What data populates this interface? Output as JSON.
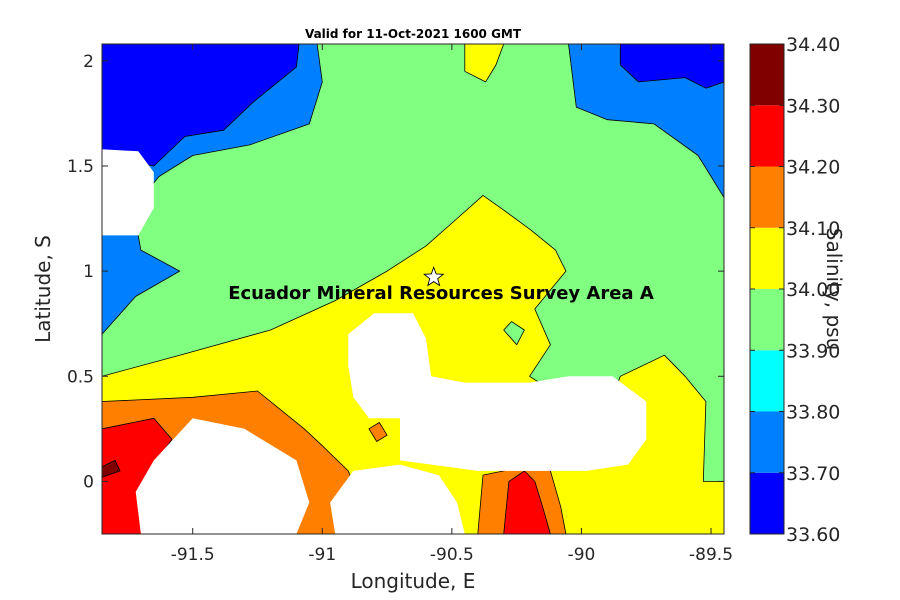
{
  "chart_data": {
    "type": "heatmap",
    "subtype": "filled-contour",
    "title": "Valid for 11-Oct-2021 1600 GMT",
    "xlabel": "Longitude, E",
    "ylabel": "Latitude, S",
    "colorbar_label": "Salinity, psu",
    "annotation": "Ecuador Mineral Resources Survey Area A",
    "marker": {
      "symbol": "star",
      "lon": -90.57,
      "lat": 0.97
    },
    "xlim": [
      -91.85,
      -89.45
    ],
    "ylim": [
      -0.25,
      2.08
    ],
    "xticks": [
      -91.5,
      -91,
      -90.5,
      -90,
      -89.5
    ],
    "xtick_labels": [
      "-91.5",
      "-91",
      "-90.5",
      "-90",
      "-89.5"
    ],
    "yticks": [
      0,
      0.5,
      1,
      1.5,
      2
    ],
    "ytick_labels": [
      "0",
      "0.5",
      "1",
      "1.5",
      "2"
    ],
    "levels": [
      33.6,
      33.7,
      33.8,
      33.9,
      34.0,
      34.1,
      34.2,
      34.3,
      34.4
    ],
    "colorbar_tick_labels": [
      "33.60",
      "33.70",
      "33.80",
      "33.90",
      "34.00",
      "34.10",
      "34.20",
      "34.30",
      "34.40"
    ],
    "level_colors": [
      "#0000ff",
      "#0080ff",
      "#00ffff",
      "#80ff80",
      "#ffff00",
      "#ff8000",
      "#ff0000",
      "#800000"
    ],
    "missing_color": "#ffffff",
    "regions": [
      {
        "level_index": 3,
        "value_range": [
          33.9,
          34.0
        ],
        "points": [
          [
            -91.85,
            2.08
          ],
          [
            -89.45,
            2.08
          ],
          [
            -89.45,
            -0.25
          ],
          [
            -91.85,
            -0.25
          ]
        ]
      },
      {
        "level_index": 1,
        "value_range": [
          33.7,
          33.8
        ],
        "points": [
          [
            -91.85,
            2.08
          ],
          [
            -91.02,
            2.08
          ],
          [
            -91.0,
            1.9
          ],
          [
            -91.05,
            1.7
          ],
          [
            -91.28,
            1.6
          ],
          [
            -91.5,
            1.55
          ],
          [
            -91.63,
            1.45
          ],
          [
            -91.73,
            1.3
          ],
          [
            -91.7,
            1.1
          ],
          [
            -91.55,
            1.0
          ],
          [
            -91.72,
            0.88
          ],
          [
            -91.85,
            0.7
          ]
        ]
      },
      {
        "level_index": 0,
        "value_range": [
          33.6,
          33.7
        ],
        "points": [
          [
            -91.85,
            2.08
          ],
          [
            -91.09,
            2.08
          ],
          [
            -91.1,
            1.97
          ],
          [
            -91.27,
            1.8
          ],
          [
            -91.38,
            1.67
          ],
          [
            -91.53,
            1.64
          ],
          [
            -91.65,
            1.5
          ],
          [
            -91.85,
            1.55
          ]
        ]
      },
      {
        "level_index": 1,
        "value_range": [
          33.7,
          33.8
        ],
        "points": [
          [
            -90.05,
            2.08
          ],
          [
            -89.45,
            2.08
          ],
          [
            -89.45,
            1.35
          ],
          [
            -89.55,
            1.55
          ],
          [
            -89.72,
            1.7
          ],
          [
            -89.9,
            1.72
          ],
          [
            -90.02,
            1.78
          ]
        ]
      },
      {
        "level_index": 0,
        "value_range": [
          33.6,
          33.7
        ],
        "points": [
          [
            -89.85,
            2.08
          ],
          [
            -89.45,
            2.08
          ],
          [
            -89.45,
            1.9
          ],
          [
            -89.52,
            1.87
          ],
          [
            -89.6,
            1.92
          ],
          [
            -89.78,
            1.9
          ],
          [
            -89.85,
            1.98
          ]
        ]
      },
      {
        "level_index": 4,
        "value_range": [
          34.0,
          34.1
        ],
        "points": [
          [
            -90.45,
            2.08
          ],
          [
            -90.3,
            2.08
          ],
          [
            -90.33,
            1.98
          ],
          [
            -90.37,
            1.9
          ],
          [
            -90.45,
            1.95
          ]
        ]
      },
      {
        "level_index": 4,
        "value_range": [
          34.0,
          34.1
        ],
        "points": [
          [
            -91.85,
            0.5
          ],
          [
            -91.55,
            0.6
          ],
          [
            -91.2,
            0.72
          ],
          [
            -90.95,
            0.86
          ],
          [
            -90.75,
            1.0
          ],
          [
            -90.6,
            1.12
          ],
          [
            -90.48,
            1.25
          ],
          [
            -90.38,
            1.36
          ],
          [
            -90.3,
            1.29
          ],
          [
            -90.2,
            1.2
          ],
          [
            -90.1,
            1.1
          ],
          [
            -90.06,
            1.0
          ],
          [
            -90.18,
            0.82
          ],
          [
            -90.12,
            0.65
          ],
          [
            -90.2,
            0.5
          ],
          [
            -90.05,
            0.38
          ],
          [
            -89.9,
            0.33
          ],
          [
            -89.85,
            0.5
          ],
          [
            -89.68,
            0.6
          ],
          [
            -89.6,
            0.5
          ],
          [
            -89.52,
            0.38
          ],
          [
            -89.53,
            0.0
          ],
          [
            -89.45,
            0.0
          ],
          [
            -89.45,
            -0.25
          ],
          [
            -91.85,
            -0.25
          ]
        ]
      },
      {
        "level_index": 5,
        "value_range": [
          34.1,
          34.2
        ],
        "points": [
          [
            -91.85,
            0.38
          ],
          [
            -91.5,
            0.4
          ],
          [
            -91.25,
            0.43
          ],
          [
            -91.17,
            0.35
          ],
          [
            -91.07,
            0.25
          ],
          [
            -91.0,
            0.17
          ],
          [
            -90.9,
            0.05
          ],
          [
            -90.85,
            -0.1
          ],
          [
            -90.75,
            -0.25
          ],
          [
            -91.85,
            -0.25
          ]
        ]
      },
      {
        "level_index": 5,
        "value_range": [
          34.1,
          34.2
        ],
        "points": [
          [
            -90.82,
            0.25
          ],
          [
            -90.78,
            0.28
          ],
          [
            -90.75,
            0.22
          ],
          [
            -90.79,
            0.19
          ]
        ]
      },
      {
        "level_index": 5,
        "value_range": [
          34.1,
          34.2
        ],
        "points": [
          [
            -90.38,
            0.03
          ],
          [
            -90.3,
            0.05
          ],
          [
            -90.22,
            0.08
          ],
          [
            -90.12,
            0.05
          ],
          [
            -90.08,
            -0.12
          ],
          [
            -90.06,
            -0.25
          ],
          [
            -90.4,
            -0.25
          ]
        ]
      },
      {
        "level_index": 6,
        "value_range": [
          34.2,
          34.3
        ],
        "points": [
          [
            -91.85,
            0.25
          ],
          [
            -91.65,
            0.3
          ],
          [
            -91.58,
            0.2
          ],
          [
            -91.65,
            0.08
          ],
          [
            -91.7,
            -0.05
          ],
          [
            -91.65,
            -0.18
          ],
          [
            -91.7,
            -0.25
          ],
          [
            -91.85,
            -0.25
          ]
        ]
      },
      {
        "level_index": 6,
        "value_range": [
          34.2,
          34.3
        ],
        "points": [
          [
            -90.28,
            0.0
          ],
          [
            -90.22,
            0.05
          ],
          [
            -90.18,
            0.0
          ],
          [
            -90.15,
            -0.12
          ],
          [
            -90.12,
            -0.25
          ],
          [
            -90.3,
            -0.25
          ]
        ]
      },
      {
        "level_index": 7,
        "value_range": [
          34.3,
          34.4
        ],
        "points": [
          [
            -91.85,
            0.07
          ],
          [
            -91.8,
            0.1
          ],
          [
            -91.78,
            0.05
          ],
          [
            -91.85,
            0.02
          ]
        ]
      },
      {
        "level_index": 3,
        "value_range": [
          33.9,
          34.0
        ],
        "points": [
          [
            -90.3,
            0.72
          ],
          [
            -90.25,
            0.65
          ],
          [
            -90.22,
            0.72
          ],
          [
            -90.27,
            0.76
          ]
        ]
      },
      {
        "level_index": -1,
        "value_range": null,
        "points": [
          [
            -91.85,
            1.58
          ],
          [
            -91.71,
            1.57
          ],
          [
            -91.65,
            1.47
          ],
          [
            -91.65,
            1.3
          ],
          [
            -91.71,
            1.17
          ],
          [
            -91.85,
            1.17
          ]
        ]
      },
      {
        "level_index": -1,
        "value_range": null,
        "points": [
          [
            -90.8,
            0.8
          ],
          [
            -90.65,
            0.8
          ],
          [
            -90.6,
            0.68
          ],
          [
            -90.58,
            0.5
          ],
          [
            -90.45,
            0.47
          ],
          [
            -90.2,
            0.47
          ],
          [
            -90.05,
            0.5
          ],
          [
            -89.88,
            0.5
          ],
          [
            -89.75,
            0.38
          ],
          [
            -89.75,
            0.2
          ],
          [
            -89.82,
            0.08
          ],
          [
            -89.98,
            0.05
          ],
          [
            -90.2,
            0.05
          ],
          [
            -90.4,
            0.05
          ],
          [
            -90.7,
            0.1
          ],
          [
            -90.7,
            0.3
          ],
          [
            -90.82,
            0.3
          ],
          [
            -90.88,
            0.4
          ],
          [
            -90.9,
            0.55
          ],
          [
            -90.9,
            0.7
          ]
        ]
      },
      {
        "level_index": -1,
        "value_range": null,
        "points": [
          [
            -91.5,
            0.3
          ],
          [
            -91.3,
            0.25
          ],
          [
            -91.1,
            0.1
          ],
          [
            -91.05,
            -0.1
          ],
          [
            -91.1,
            -0.25
          ],
          [
            -91.7,
            -0.25
          ],
          [
            -91.72,
            -0.05
          ],
          [
            -91.65,
            0.1
          ]
        ]
      },
      {
        "level_index": -1,
        "value_range": null,
        "points": [
          [
            -90.88,
            0.05
          ],
          [
            -90.7,
            0.08
          ],
          [
            -90.55,
            0.03
          ],
          [
            -90.48,
            -0.1
          ],
          [
            -90.45,
            -0.25
          ],
          [
            -90.95,
            -0.25
          ],
          [
            -90.97,
            -0.1
          ]
        ]
      }
    ]
  }
}
